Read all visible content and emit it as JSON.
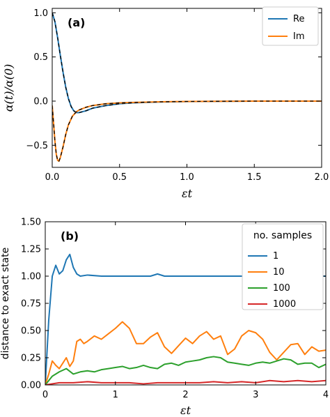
{
  "chart_data": [
    {
      "type": "line",
      "panel": "(a)",
      "xlabel": "εt",
      "ylabel": "α(t)/α(0)",
      "xlim": [
        0,
        2.0
      ],
      "ylim": [
        -0.75,
        1.05
      ],
      "xticks": [
        0,
        0.5,
        1.0,
        1.5,
        2.0
      ],
      "xtick_labels": [
        "0.0",
        "0.5",
        "1.0",
        "1.5",
        "2.0"
      ],
      "yticks": [
        1.0,
        0.5,
        0.0,
        -0.5
      ],
      "ytick_labels": [
        "1.0",
        "0.5",
        "0.0",
        "−0.5"
      ],
      "legend_position": "top-right",
      "series": [
        {
          "name": "Re",
          "color": "#1f77b4",
          "dashed_overlay": true,
          "x": [
            0,
            0.02,
            0.04,
            0.06,
            0.08,
            0.1,
            0.12,
            0.14,
            0.16,
            0.18,
            0.2,
            0.25,
            0.3,
            0.4,
            0.5,
            0.6,
            0.8,
            1.0,
            1.5,
            2.0
          ],
          "y": [
            1.0,
            0.9,
            0.72,
            0.52,
            0.33,
            0.16,
            0.03,
            -0.06,
            -0.11,
            -0.13,
            -0.13,
            -0.11,
            -0.08,
            -0.05,
            -0.03,
            -0.02,
            -0.01,
            -0.005,
            0,
            0
          ]
        },
        {
          "name": "Im",
          "color": "#ff7f0e",
          "dashed_overlay": true,
          "x": [
            0,
            0.01,
            0.02,
            0.03,
            0.04,
            0.05,
            0.06,
            0.08,
            0.1,
            0.12,
            0.15,
            0.18,
            0.2,
            0.25,
            0.3,
            0.4,
            0.5,
            0.6,
            0.8,
            1.0,
            1.5,
            2.0
          ],
          "y": [
            -0.05,
            -0.25,
            -0.45,
            -0.6,
            -0.67,
            -0.68,
            -0.64,
            -0.52,
            -0.38,
            -0.27,
            -0.17,
            -0.12,
            -0.1,
            -0.07,
            -0.05,
            -0.03,
            -0.02,
            -0.015,
            -0.008,
            -0.004,
            0,
            0
          ]
        }
      ]
    },
    {
      "type": "line",
      "panel": "(b)",
      "xlabel": "εt",
      "ylabel": "distance to exact state",
      "xlim": [
        0,
        4
      ],
      "ylim": [
        0,
        1.5
      ],
      "xticks": [
        0,
        1,
        2,
        3,
        4
      ],
      "xtick_labels": [
        "0",
        "1",
        "2",
        "3",
        "4"
      ],
      "yticks": [
        0,
        0.25,
        0.5,
        0.75,
        1.0,
        1.25,
        1.5
      ],
      "ytick_labels": [
        "0.00",
        "0.25",
        "0.50",
        "0.75",
        "1.00",
        "1.25",
        "1.50"
      ],
      "legend_title": "no. samples",
      "legend_position": "top-right",
      "series": [
        {
          "name": "1",
          "color": "#1f77b4",
          "x": [
            0,
            0.05,
            0.1,
            0.15,
            0.2,
            0.25,
            0.3,
            0.35,
            0.4,
            0.45,
            0.5,
            0.6,
            0.8,
            1.0,
            1.2,
            1.4,
            1.5,
            1.6,
            1.7,
            2.0,
            2.5,
            3.0,
            3.5,
            4.0
          ],
          "y": [
            0,
            0.6,
            1.0,
            1.1,
            1.02,
            1.05,
            1.15,
            1.2,
            1.08,
            1.02,
            1.0,
            1.01,
            1.0,
            1.0,
            1.0,
            1.0,
            1.0,
            1.02,
            1.0,
            1.0,
            1.0,
            1.0,
            1.0,
            1.0
          ]
        },
        {
          "name": "10",
          "color": "#ff7f0e",
          "x": [
            0,
            0.05,
            0.1,
            0.15,
            0.2,
            0.25,
            0.3,
            0.35,
            0.4,
            0.45,
            0.5,
            0.55,
            0.6,
            0.7,
            0.8,
            0.9,
            1.0,
            1.1,
            1.2,
            1.3,
            1.4,
            1.5,
            1.6,
            1.7,
            1.8,
            1.9,
            2.0,
            2.1,
            2.2,
            2.3,
            2.4,
            2.5,
            2.6,
            2.7,
            2.8,
            2.9,
            3.0,
            3.1,
            3.2,
            3.3,
            3.4,
            3.5,
            3.6,
            3.7,
            3.8,
            3.9,
            4.0
          ],
          "y": [
            0,
            0.1,
            0.22,
            0.18,
            0.15,
            0.2,
            0.25,
            0.17,
            0.22,
            0.4,
            0.42,
            0.38,
            0.4,
            0.45,
            0.42,
            0.47,
            0.52,
            0.58,
            0.52,
            0.38,
            0.38,
            0.44,
            0.48,
            0.35,
            0.29,
            0.36,
            0.43,
            0.38,
            0.45,
            0.49,
            0.42,
            0.45,
            0.28,
            0.33,
            0.45,
            0.5,
            0.48,
            0.42,
            0.3,
            0.23,
            0.3,
            0.37,
            0.38,
            0.28,
            0.35,
            0.31,
            0.32
          ]
        },
        {
          "name": "100",
          "color": "#2ca02c",
          "x": [
            0,
            0.1,
            0.2,
            0.3,
            0.4,
            0.5,
            0.6,
            0.7,
            0.8,
            0.9,
            1.0,
            1.1,
            1.2,
            1.3,
            1.4,
            1.5,
            1.6,
            1.7,
            1.8,
            1.9,
            2.0,
            2.1,
            2.2,
            2.3,
            2.4,
            2.5,
            2.6,
            2.7,
            2.8,
            2.9,
            3.0,
            3.1,
            3.2,
            3.3,
            3.4,
            3.5,
            3.6,
            3.7,
            3.8,
            3.9,
            4.0
          ],
          "y": [
            0,
            0.08,
            0.12,
            0.15,
            0.1,
            0.12,
            0.13,
            0.12,
            0.14,
            0.15,
            0.16,
            0.17,
            0.15,
            0.16,
            0.18,
            0.16,
            0.15,
            0.19,
            0.2,
            0.18,
            0.21,
            0.22,
            0.23,
            0.25,
            0.26,
            0.25,
            0.21,
            0.2,
            0.19,
            0.18,
            0.2,
            0.21,
            0.2,
            0.22,
            0.24,
            0.23,
            0.19,
            0.2,
            0.2,
            0.16,
            0.19
          ]
        },
        {
          "name": "1000",
          "color": "#d62728",
          "x": [
            0,
            0.2,
            0.4,
            0.6,
            0.8,
            1.0,
            1.2,
            1.4,
            1.6,
            1.8,
            2.0,
            2.2,
            2.4,
            2.6,
            2.8,
            3.0,
            3.2,
            3.4,
            3.6,
            3.8,
            4.0
          ],
          "y": [
            0,
            0.02,
            0.02,
            0.03,
            0.02,
            0.02,
            0.02,
            0.01,
            0.02,
            0.02,
            0.02,
            0.02,
            0.03,
            0.02,
            0.03,
            0.02,
            0.04,
            0.03,
            0.04,
            0.03,
            0.04
          ]
        }
      ]
    }
  ]
}
